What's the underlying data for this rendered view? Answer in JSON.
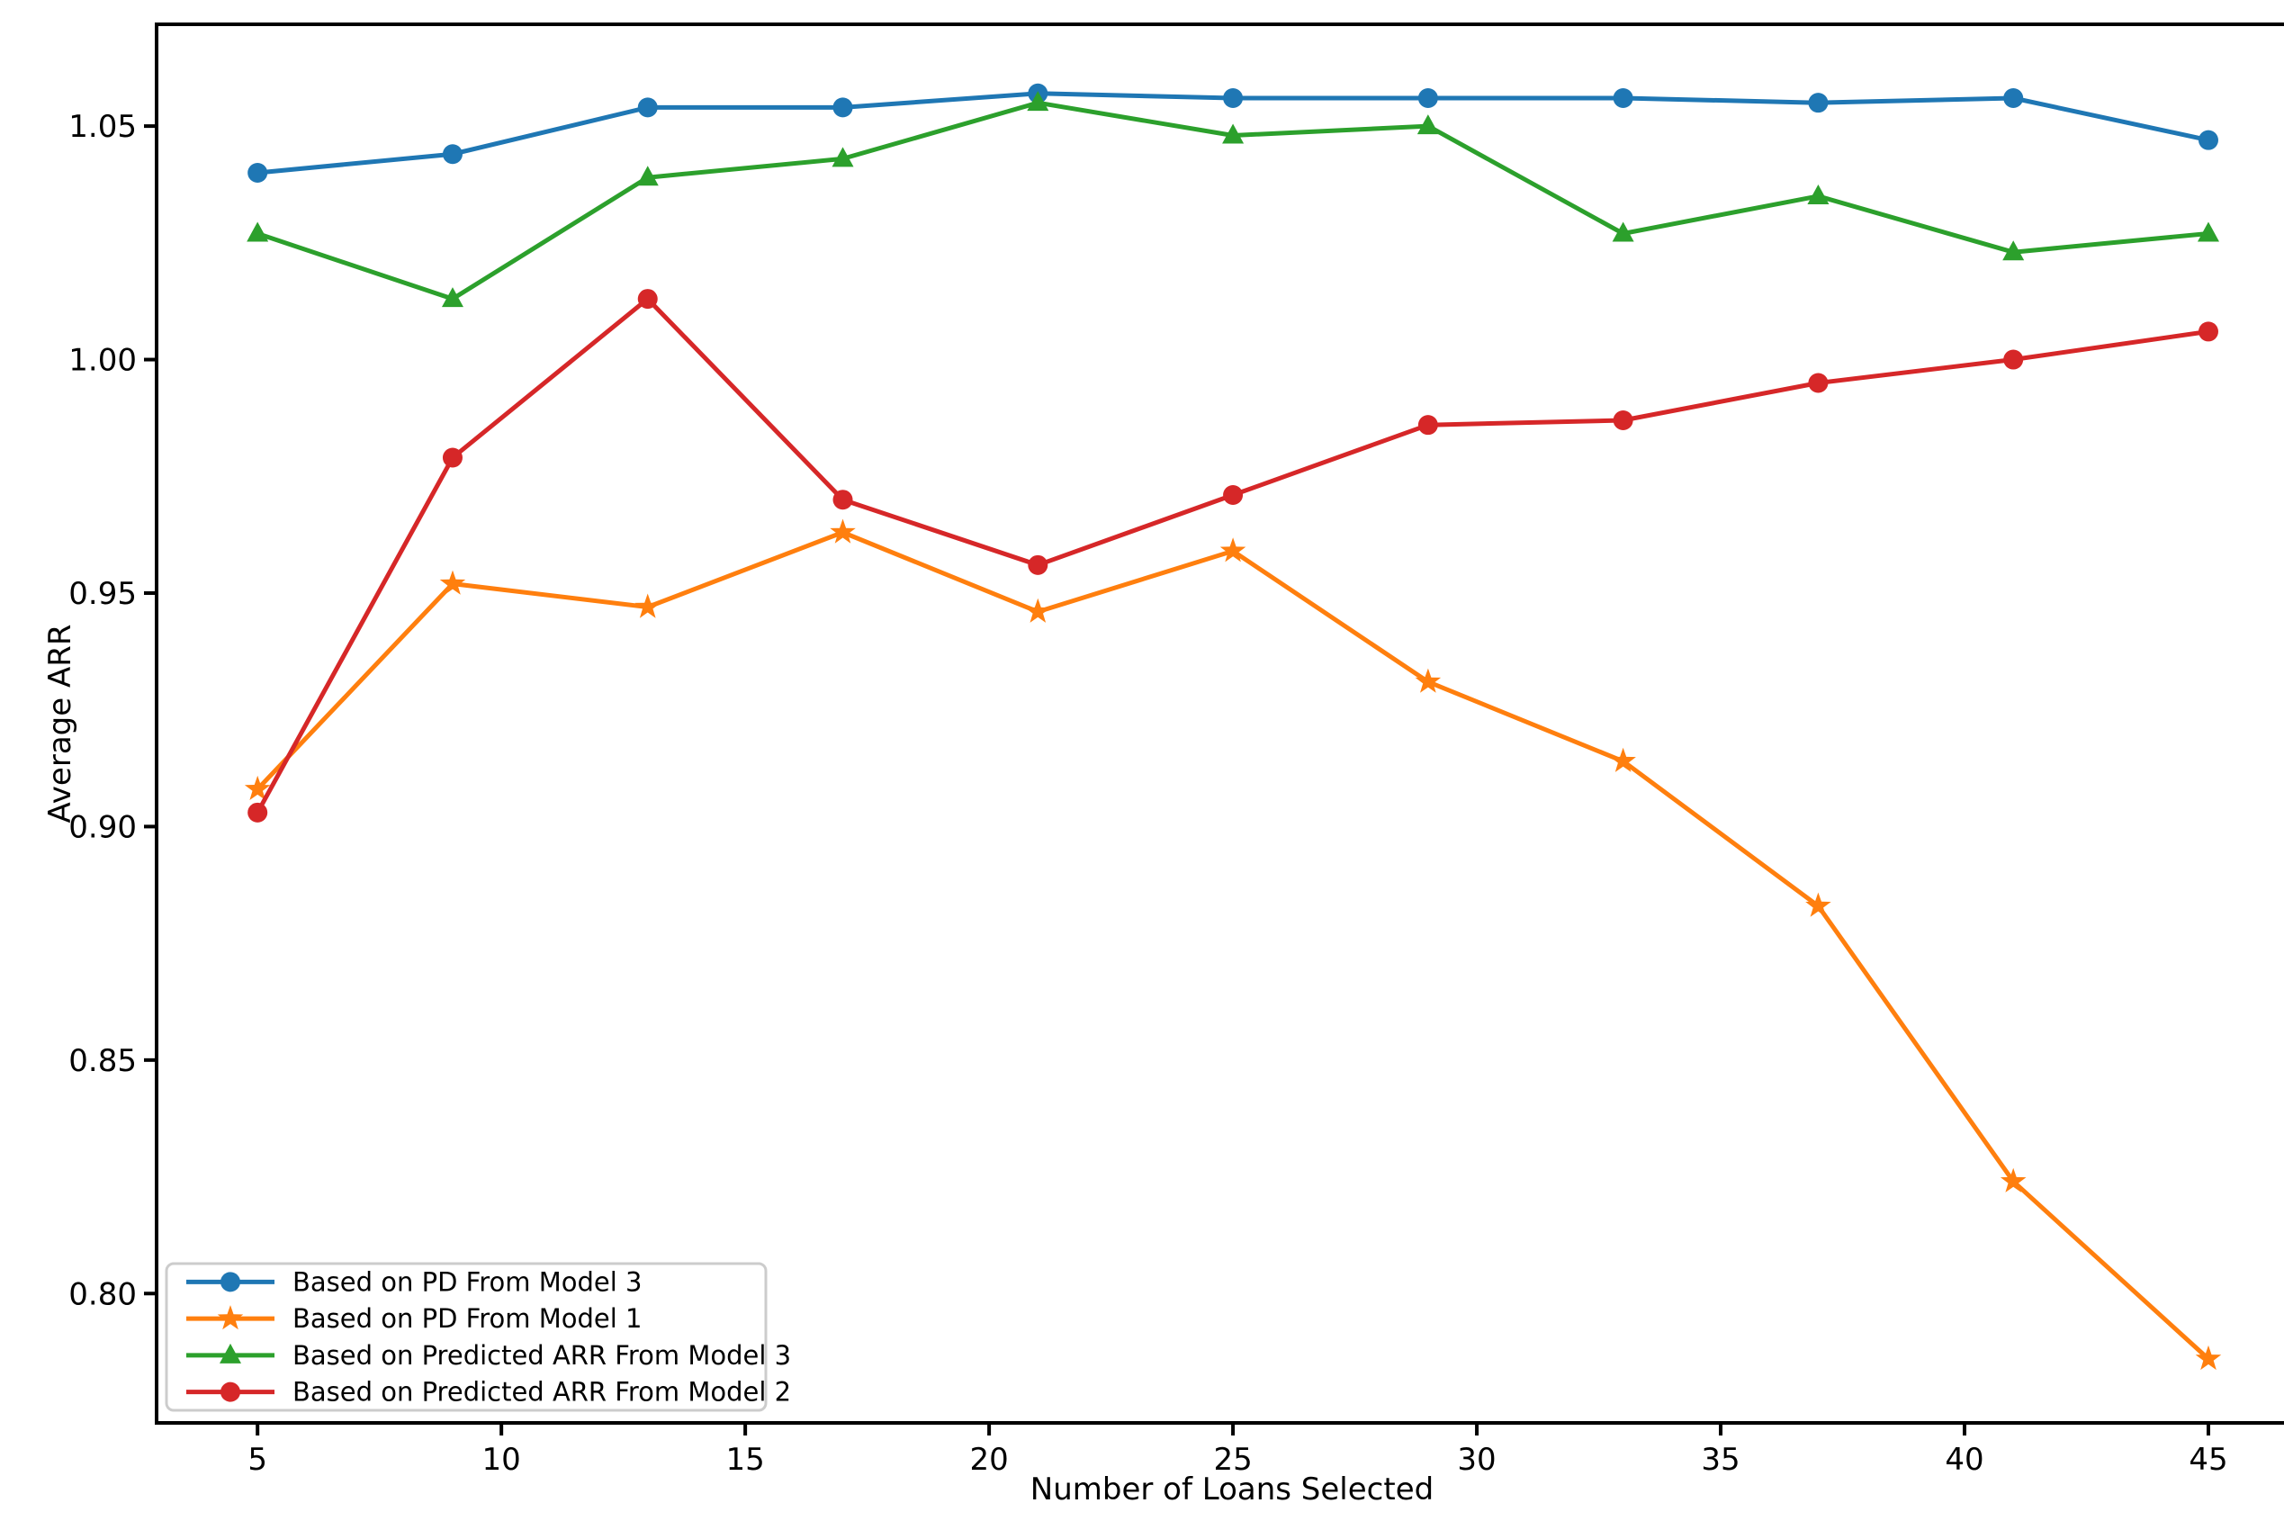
{
  "figure": {
    "background": "#ffffff",
    "plot_border_color": "#000000"
  },
  "chart_data": {
    "type": "line",
    "title": "",
    "xlabel": "Number of Loans Selected",
    "ylabel": "Average ARR",
    "x": [
      5,
      9,
      13,
      17,
      21,
      25,
      29,
      33,
      37,
      41,
      45
    ],
    "series": [
      {
        "name": "Based on PD From Model 3",
        "color": "#1f77b4",
        "marker": "circle",
        "values": [
          1.04,
          1.044,
          1.054,
          1.054,
          1.057,
          1.056,
          1.056,
          1.056,
          1.055,
          1.056,
          1.047
        ]
      },
      {
        "name": "Based on PD From Model 1",
        "color": "#ff7f0e",
        "marker": "star",
        "values": [
          0.908,
          0.952,
          0.947,
          0.963,
          0.946,
          0.959,
          0.931,
          0.914,
          0.883,
          0.824,
          0.786
        ]
      },
      {
        "name": "Based on Predicted ARR From Model 3",
        "color": "#2ca02c",
        "marker": "triangle",
        "values": [
          1.027,
          1.013,
          1.039,
          1.043,
          1.055,
          1.048,
          1.05,
          1.027,
          1.035,
          1.023,
          1.027
        ]
      },
      {
        "name": "Based on Predicted ARR From Model 2",
        "color": "#d62728",
        "marker": "circle",
        "values": [
          0.903,
          0.979,
          1.013,
          0.97,
          0.956,
          0.971,
          0.986,
          0.987,
          0.995,
          1.0,
          1.006
        ]
      }
    ],
    "xticks": [
      5,
      10,
      15,
      20,
      25,
      30,
      35,
      40,
      45
    ],
    "ytick_labels": [
      "0.80",
      "0.85",
      "0.90",
      "0.95",
      "1.00",
      "1.05"
    ],
    "ytick_values": [
      0.8,
      0.85,
      0.9,
      0.95,
      1.0,
      1.05
    ],
    "xlim": [
      2.93,
      47.03
    ],
    "ylim": [
      0.7723,
      1.0718
    ],
    "grid": false,
    "legend_position": "lower left"
  }
}
